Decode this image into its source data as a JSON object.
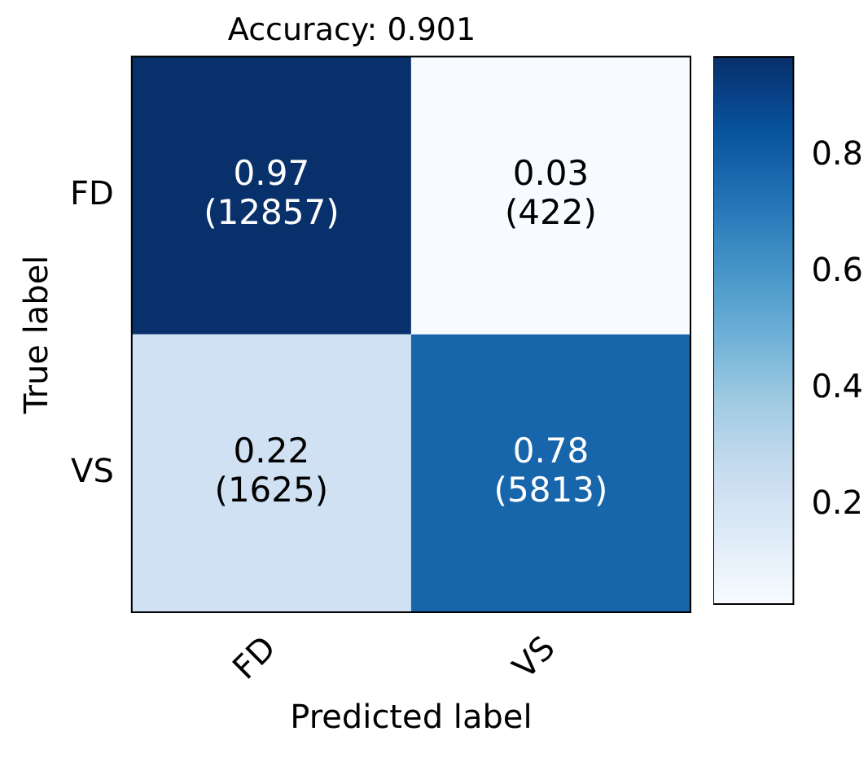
{
  "chart_data": {
    "type": "heatmap",
    "title": "Accuracy: 0.901",
    "xlabel": "Predicted label",
    "ylabel": "True label",
    "categories": [
      "FD",
      "VS"
    ],
    "y_categories": [
      "FD",
      "VS"
    ],
    "cells": [
      [
        0.97,
        0.03
      ],
      [
        0.22,
        0.78
      ]
    ],
    "cell_labels": [
      [
        "0.97\n(12857)",
        "0.03\n(422)"
      ],
      [
        "0.22\n(1625)",
        "0.78\n(5813)"
      ]
    ],
    "clim": [
      0.03,
      0.97
    ],
    "cticks": [
      0.2,
      0.4,
      0.6,
      0.8
    ]
  }
}
